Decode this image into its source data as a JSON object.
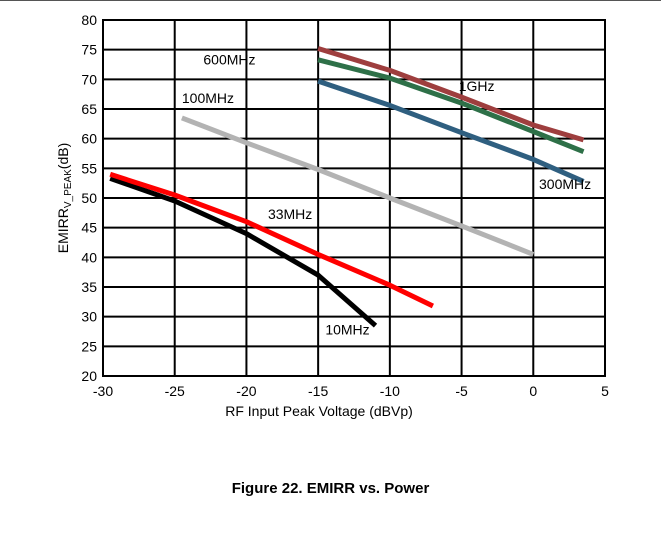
{
  "caption": "Figure 22. EMIRR vs. Power",
  "chart_data": {
    "type": "line",
    "title": "",
    "xlabel": "RF Input Peak Voltage (dBVp)",
    "ylabel_main": "EMIRR",
    "ylabel_sub": "V_PEAK",
    "ylabel_unit": "(dB)",
    "xlim": [
      -30,
      5
    ],
    "ylim": [
      20,
      80
    ],
    "xticks": [
      -30,
      -25,
      -20,
      -15,
      -10,
      -5,
      0,
      5
    ],
    "yticks": [
      20,
      25,
      30,
      35,
      40,
      45,
      50,
      55,
      60,
      65,
      70,
      75,
      80
    ],
    "grid": true,
    "series": [
      {
        "name": "10MHz",
        "color": "#000000",
        "x": [
          -29.5,
          -25,
          -20,
          -15,
          -11
        ],
        "y": [
          53.3,
          49.5,
          44,
          37,
          28.5
        ]
      },
      {
        "name": "33MHz",
        "color": "#ff0000",
        "x": [
          -29.5,
          -25,
          -20,
          -15,
          -10,
          -7
        ],
        "y": [
          54,
          50.5,
          46,
          40.5,
          35.3,
          31.8
        ]
      },
      {
        "name": "100MHz",
        "color": "#b3b3b3",
        "x": [
          -24.5,
          -20,
          -15,
          -10,
          -5,
          0
        ],
        "y": [
          63.5,
          59.3,
          54.8,
          50,
          45.3,
          40.5
        ]
      },
      {
        "name": "300MHz",
        "color": "#2f5f80",
        "x": [
          -15,
          -10,
          -5,
          0,
          3.5
        ],
        "y": [
          69.7,
          65.6,
          61,
          56.5,
          52.8
        ]
      },
      {
        "name": "600MHz",
        "color": "#2e7048",
        "x": [
          -15,
          -10,
          -5,
          0,
          3.5
        ],
        "y": [
          73.3,
          70.2,
          66,
          61.2,
          57.8
        ]
      },
      {
        "name": "1GHz",
        "color": "#9e3e3e",
        "x": [
          -15,
          -10,
          -5,
          0,
          3.5
        ],
        "y": [
          75.2,
          71.5,
          67,
          62.3,
          59.8
        ]
      }
    ],
    "annotations": [
      {
        "text": "600MHz",
        "x": -23,
        "y": 72.5
      },
      {
        "text": "1GHz",
        "x": -5.2,
        "y": 68
      },
      {
        "text": "100MHz",
        "x": -24.5,
        "y": 66
      },
      {
        "text": "300MHz",
        "x": 0.4,
        "y": 51.5
      },
      {
        "text": "33MHz",
        "x": -18.5,
        "y": 46.5
      },
      {
        "text": "10MHz",
        "x": -14.5,
        "y": 27
      }
    ]
  }
}
